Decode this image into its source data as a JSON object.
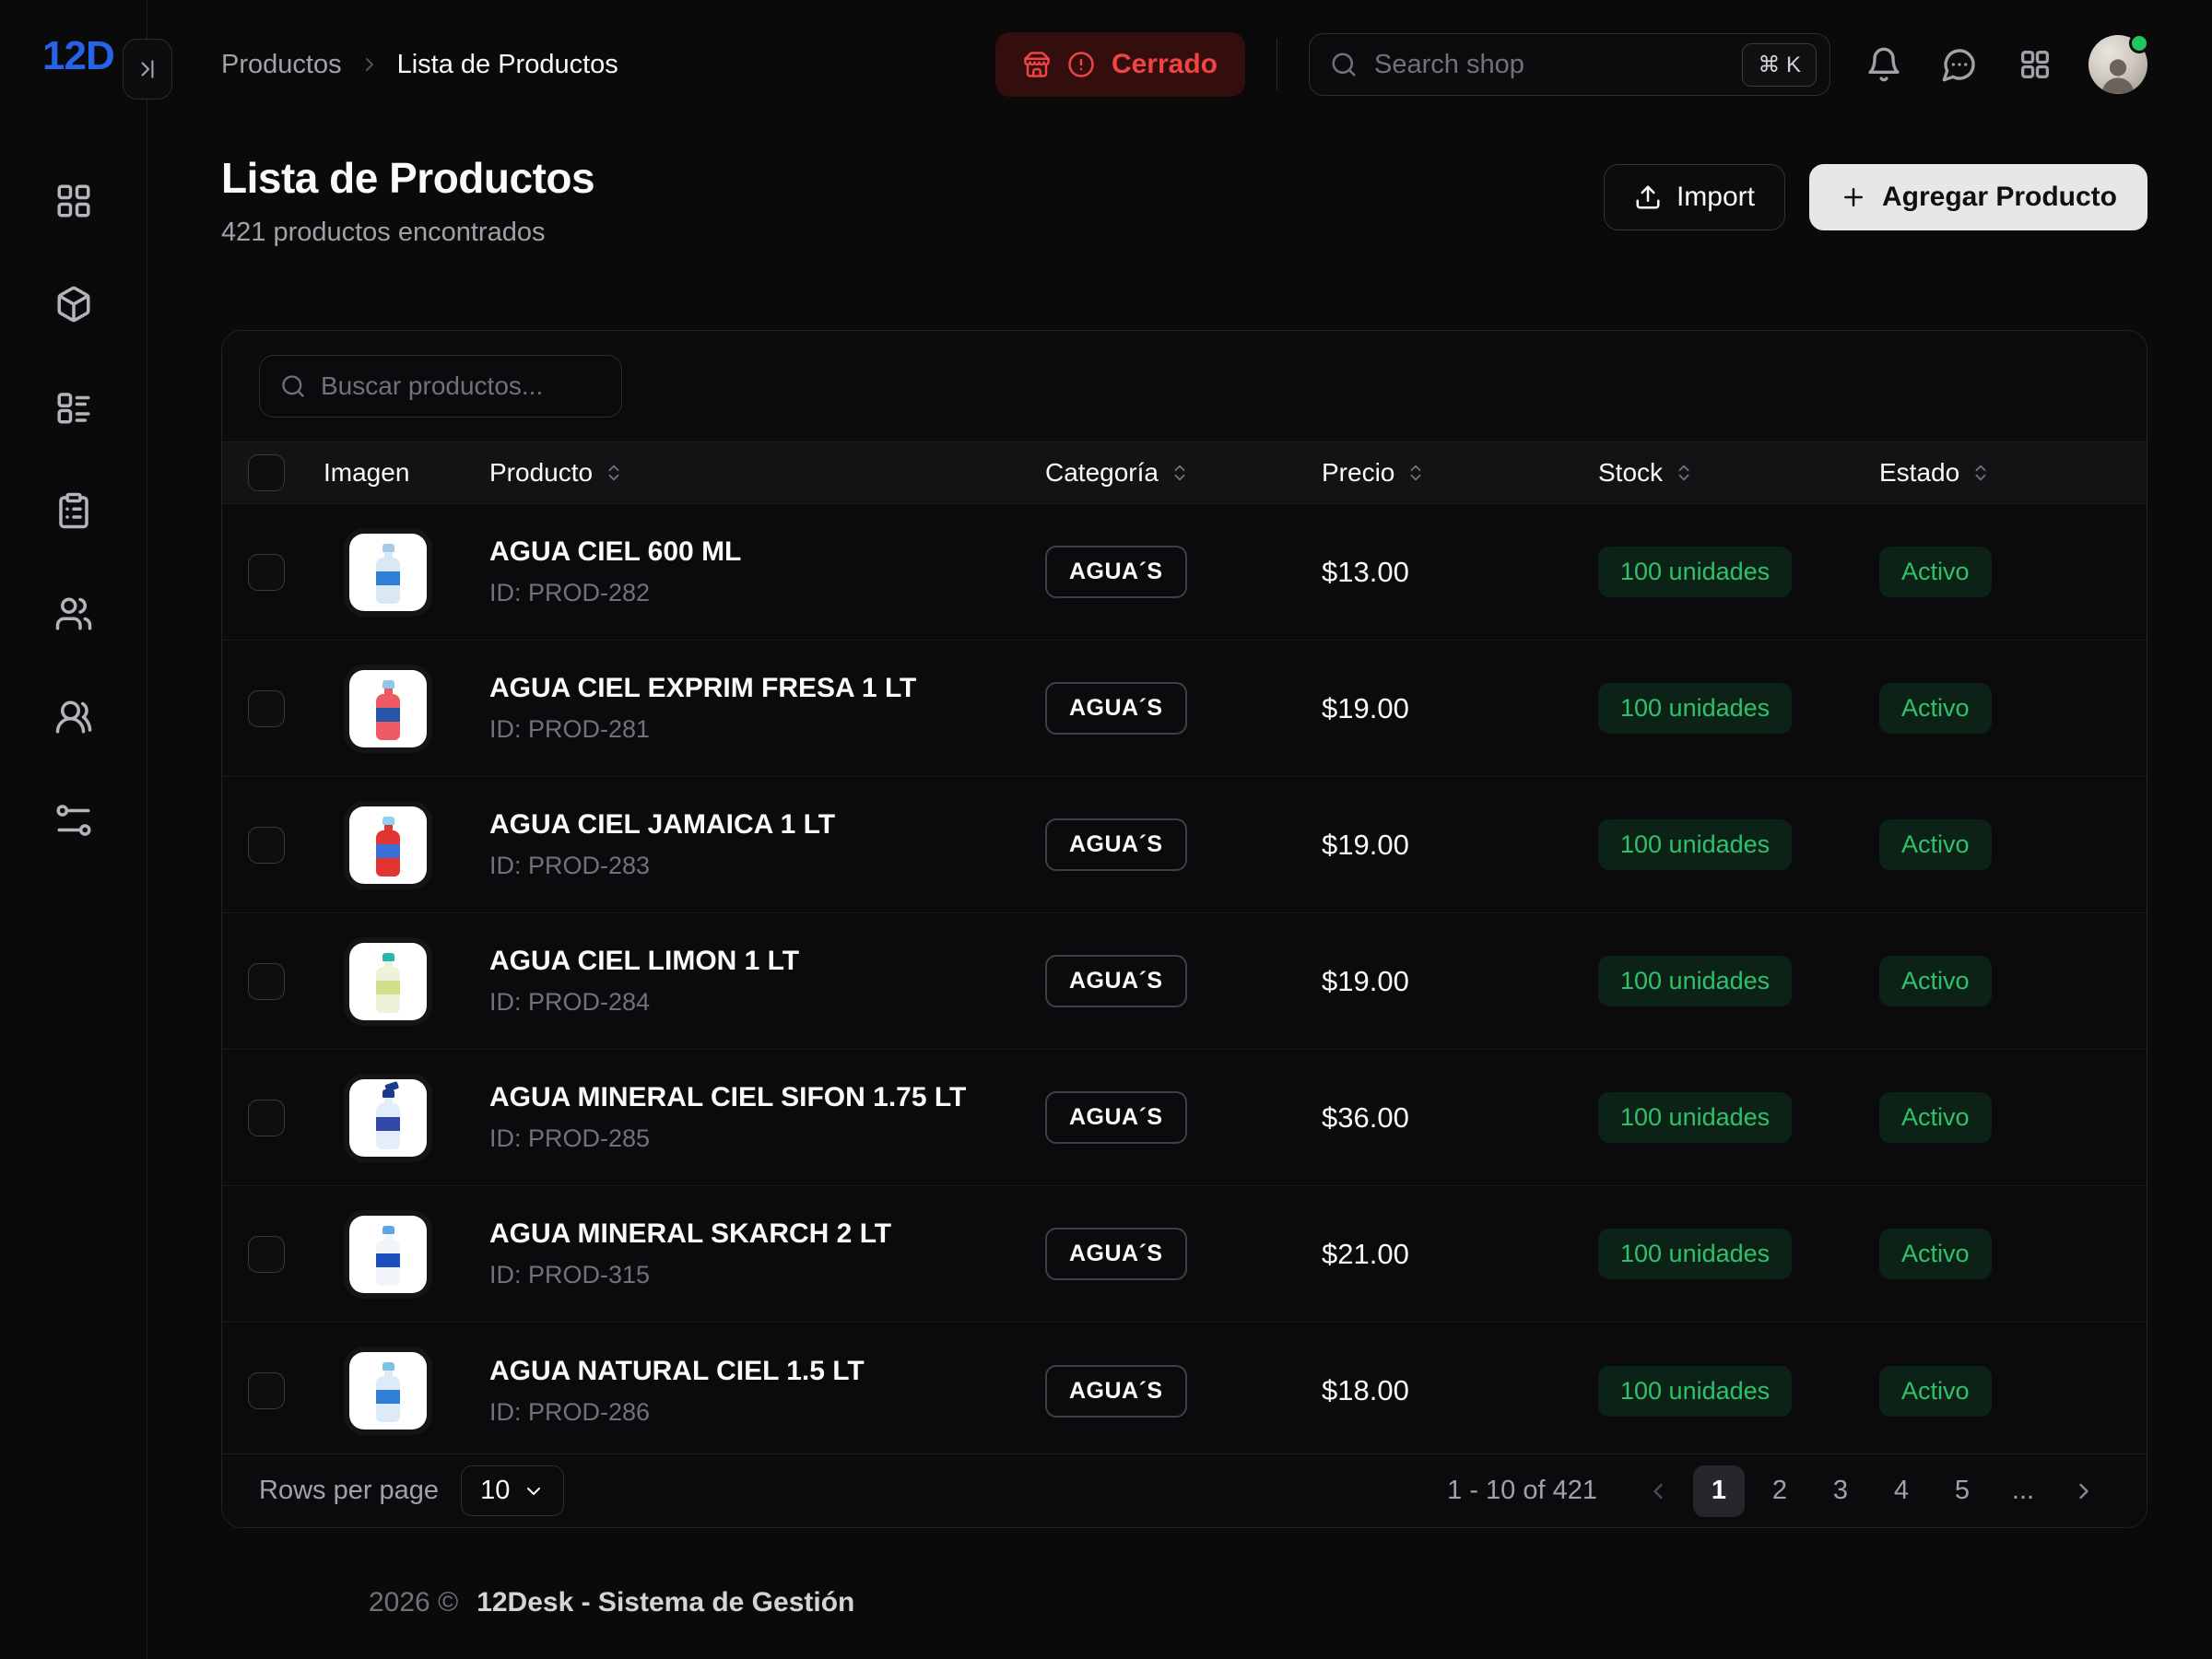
{
  "brand": {
    "logo": "12D",
    "accent_color": "#2563eb"
  },
  "sidebar": {
    "items": [
      {
        "icon": "layout-grid-icon"
      },
      {
        "icon": "package-icon"
      },
      {
        "icon": "layout-list-icon"
      },
      {
        "icon": "clipboard-list-icon"
      },
      {
        "icon": "users-icon"
      },
      {
        "icon": "users-round-icon"
      },
      {
        "icon": "route-icon"
      }
    ]
  },
  "topbar": {
    "breadcrumb": {
      "parent": "Productos",
      "current": "Lista de Productos"
    },
    "store_status": {
      "label": "Cerrado",
      "color": "#ef4444"
    },
    "search": {
      "placeholder": "Search shop",
      "shortcut": "⌘ K"
    },
    "icons": [
      "bell-icon",
      "chat-icon",
      "apps-grid-icon",
      "avatar"
    ]
  },
  "page": {
    "title": "Lista de Productos",
    "subtitle": "421 productos encontrados",
    "import_label": "Import",
    "add_label": "Agregar Producto"
  },
  "table": {
    "search_placeholder": "Buscar productos...",
    "columns": [
      "Imagen",
      "Producto",
      "Categoría",
      "Precio",
      "Stock",
      "Estado"
    ],
    "status_color": "#2fc26a",
    "products": [
      {
        "name": "AGUA CIEL 600 ML",
        "id": "ID: PROD-282",
        "category": "AGUA´S",
        "price": "$13.00",
        "stock": "100 unidades",
        "status": "Activo",
        "bottle": {
          "cap": "#a9c9e9",
          "body": "#d9e8f5",
          "label": "#2f7fd6",
          "sprayer": false
        }
      },
      {
        "name": "AGUA CIEL EXPRIM FRESA 1 LT",
        "id": "ID: PROD-281",
        "category": "AGUA´S",
        "price": "$19.00",
        "stock": "100 unidades",
        "status": "Activo",
        "bottle": {
          "cap": "#8ec7ea",
          "body": "#ee5a64",
          "label": "#2456a8",
          "sprayer": false
        }
      },
      {
        "name": "AGUA CIEL JAMAICA 1 LT",
        "id": "ID: PROD-283",
        "category": "AGUA´S",
        "price": "$19.00",
        "stock": "100 unidades",
        "status": "Activo",
        "bottle": {
          "cap": "#8ed4f0",
          "body": "#e23430",
          "label": "#3a6fd8",
          "sprayer": false
        }
      },
      {
        "name": "AGUA CIEL LIMON 1 LT",
        "id": "ID: PROD-284",
        "category": "AGUA´S",
        "price": "$19.00",
        "stock": "100 unidades",
        "status": "Activo",
        "bottle": {
          "cap": "#27b5ae",
          "body": "#eef2d8",
          "label": "#cfe08a",
          "sprayer": false
        }
      },
      {
        "name": "AGUA MINERAL CIEL SIFON 1.75 LT",
        "id": "ID: PROD-285",
        "category": "AGUA´S",
        "price": "$36.00",
        "stock": "100 unidades",
        "status": "Activo",
        "bottle": {
          "cap": "#1e3a8a",
          "body": "#e3eefa",
          "label": "#3347a8",
          "sprayer": true
        }
      },
      {
        "name": "AGUA MINERAL SKARCH 2 LT",
        "id": "ID: PROD-315",
        "category": "AGUA´S",
        "price": "$21.00",
        "stock": "100 unidades",
        "status": "Activo",
        "bottle": {
          "cap": "#5aa7e8",
          "body": "#f2f6fa",
          "label": "#1d4fc0",
          "sprayer": false
        }
      },
      {
        "name": "AGUA NATURAL CIEL 1.5 LT",
        "id": "ID: PROD-286",
        "category": "AGUA´S",
        "price": "$18.00",
        "stock": "100 unidades",
        "status": "Activo",
        "bottle": {
          "cap": "#7fc0ea",
          "body": "#dcebf7",
          "label": "#2f7fd6",
          "sprayer": false
        }
      }
    ]
  },
  "pagination": {
    "rows_per_page_label": "Rows per page",
    "rows_per_page_value": "10",
    "range": "1 - 10 of 421",
    "pages": [
      "1",
      "2",
      "3",
      "4",
      "5"
    ],
    "active_page": "1",
    "ellipsis": "..."
  },
  "footer": {
    "year": "2026 ©",
    "name": "12Desk - Sistema de Gestión"
  }
}
